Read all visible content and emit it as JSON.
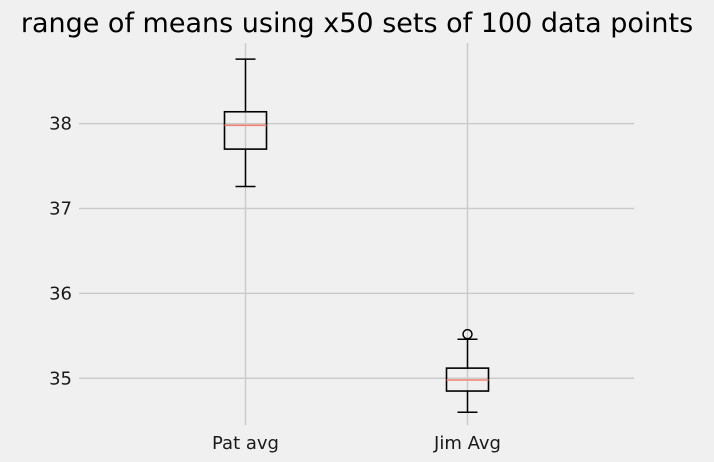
{
  "chart_data": {
    "type": "boxplot",
    "title": "range of means using x50 sets of 100 data points",
    "xlabel": "",
    "ylabel": "",
    "categories": [
      "Pat avg",
      "Jim Avg"
    ],
    "ylim": [
      34.45,
      38.95
    ],
    "yticks": [
      35,
      36,
      37,
      38
    ],
    "grid": true,
    "boxes": [
      {
        "name": "Pat avg",
        "whisker_low": 37.26,
        "q1": 37.7,
        "median": 37.98,
        "q3": 38.14,
        "whisker_high": 38.76,
        "fliers": []
      },
      {
        "name": "Jim Avg",
        "whisker_low": 34.6,
        "q1": 34.85,
        "median": 34.98,
        "q3": 35.12,
        "whisker_high": 35.46,
        "fliers": [
          35.52
        ]
      }
    ],
    "colors": {
      "background": "#f0f0f0",
      "grid": "#cbcbcb",
      "box": "#000000",
      "median": "#f08070"
    }
  }
}
